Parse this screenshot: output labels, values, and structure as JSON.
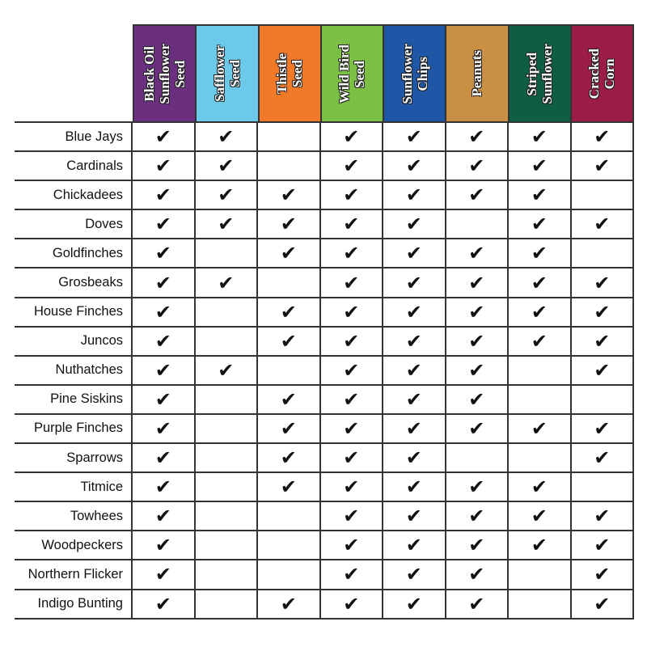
{
  "columns": [
    {
      "label": "Black Oil\nSunflower\nSeed",
      "color": "#6a2f7e"
    },
    {
      "label": "Safflower\nSeed",
      "color": "#6cc9ea"
    },
    {
      "label": "Thistle\nSeed",
      "color": "#f07a28"
    },
    {
      "label": "Wild Bird\nSeed",
      "color": "#7cbf45"
    },
    {
      "label": "Sunflower\nChips",
      "color": "#1f56a5"
    },
    {
      "label": "Peanuts",
      "color": "#c98f44"
    },
    {
      "label": "Striped\nSunflower",
      "color": "#0d5e44"
    },
    {
      "label": "Cracked\nCorn",
      "color": "#9b1d45"
    }
  ],
  "check_symbol": "✔",
  "rows": [
    {
      "bird": "Blue Jays",
      "checks": [
        1,
        1,
        0,
        1,
        1,
        1,
        1,
        1
      ]
    },
    {
      "bird": "Cardinals",
      "checks": [
        1,
        1,
        0,
        1,
        1,
        1,
        1,
        1
      ]
    },
    {
      "bird": "Chickadees",
      "checks": [
        1,
        1,
        1,
        1,
        1,
        1,
        1,
        0
      ]
    },
    {
      "bird": "Doves",
      "checks": [
        1,
        1,
        1,
        1,
        1,
        0,
        1,
        1
      ]
    },
    {
      "bird": "Goldfinches",
      "checks": [
        1,
        0,
        1,
        1,
        1,
        1,
        1,
        0
      ]
    },
    {
      "bird": "Grosbeaks",
      "checks": [
        1,
        1,
        0,
        1,
        1,
        1,
        1,
        1
      ]
    },
    {
      "bird": "House Finches",
      "checks": [
        1,
        0,
        1,
        1,
        1,
        1,
        1,
        1
      ]
    },
    {
      "bird": "Juncos",
      "checks": [
        1,
        0,
        1,
        1,
        1,
        1,
        1,
        1
      ]
    },
    {
      "bird": "Nuthatches",
      "checks": [
        1,
        1,
        0,
        1,
        1,
        1,
        0,
        1
      ]
    },
    {
      "bird": "Pine Siskins",
      "checks": [
        1,
        0,
        1,
        1,
        1,
        1,
        0,
        0
      ]
    },
    {
      "bird": "Purple Finches",
      "checks": [
        1,
        0,
        1,
        1,
        1,
        1,
        1,
        1
      ]
    },
    {
      "bird": "Sparrows",
      "checks": [
        1,
        0,
        1,
        1,
        1,
        0,
        0,
        1
      ]
    },
    {
      "bird": "Titmice",
      "checks": [
        1,
        0,
        1,
        1,
        1,
        1,
        1,
        0
      ]
    },
    {
      "bird": "Towhees",
      "checks": [
        1,
        0,
        0,
        1,
        1,
        1,
        1,
        1
      ]
    },
    {
      "bird": "Woodpeckers",
      "checks": [
        1,
        0,
        0,
        1,
        1,
        1,
        1,
        1
      ]
    },
    {
      "bird": "Northern Flicker",
      "checks": [
        1,
        0,
        0,
        1,
        1,
        1,
        0,
        1
      ]
    },
    {
      "bird": "Indigo Bunting",
      "checks": [
        1,
        0,
        1,
        1,
        1,
        1,
        0,
        1
      ]
    }
  ]
}
